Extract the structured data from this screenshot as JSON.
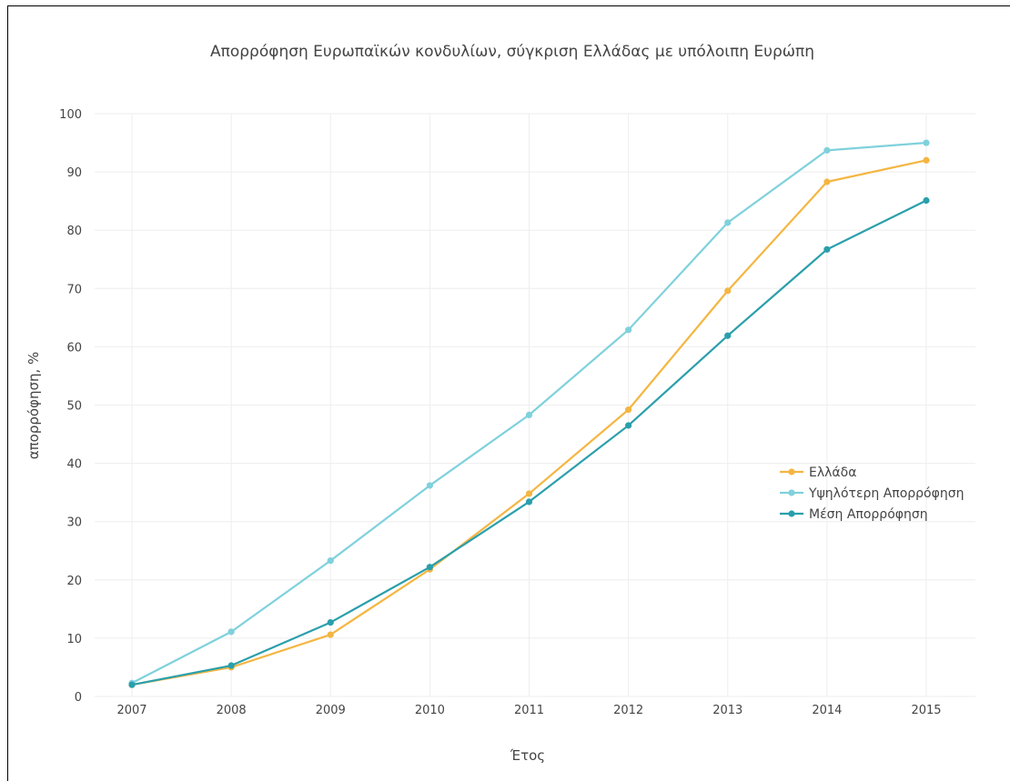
{
  "chart_data": {
    "type": "line",
    "title": "Απορρόφηση Ευρωπαϊκών κονδυλίων, σύγκριση Ελλάδας με υπόλοιπη Ευρώπη",
    "xlabel": "Έτος",
    "ylabel": "απορρόφηση, %",
    "x": [
      "2007",
      "2008",
      "2009",
      "2010",
      "2011",
      "2012",
      "2013",
      "2014",
      "2015"
    ],
    "ylim": [
      0,
      100
    ],
    "yticks": [
      "0",
      "10",
      "20",
      "30",
      "40",
      "50",
      "60",
      "70",
      "80",
      "90",
      "100"
    ],
    "grid": true,
    "legend_position": "right",
    "series": [
      {
        "name": "Ελλάδα",
        "color": "#f4b642",
        "values": [
          2,
          5,
          10.6,
          21.8,
          34.8,
          49.2,
          69.6,
          88.3,
          92
        ]
      },
      {
        "name": "Υψηλότερη Απορρόφηση",
        "color": "#7fd1dc",
        "values": [
          2.3,
          11.1,
          23.3,
          36.2,
          48.3,
          62.9,
          81.3,
          93.7,
          95
        ]
      },
      {
        "name": "Μέση Απορρόφηση",
        "color": "#2a9fac",
        "values": [
          2,
          5.3,
          12.7,
          22.2,
          33.4,
          46.5,
          61.9,
          76.7,
          85.1
        ]
      }
    ]
  }
}
